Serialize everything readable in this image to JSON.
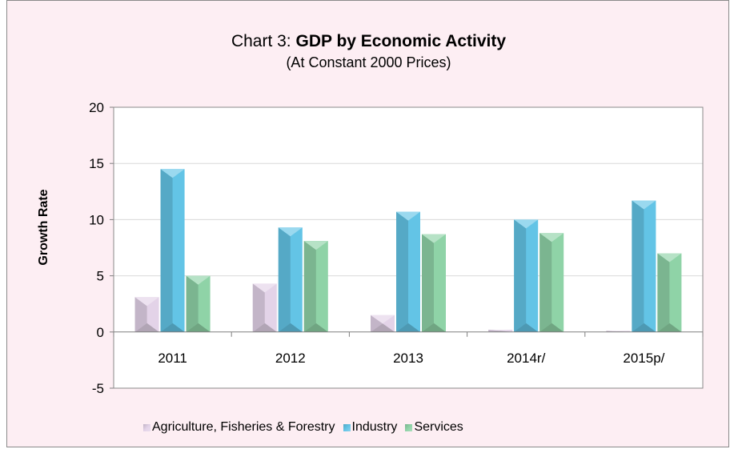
{
  "chart_data": {
    "type": "bar",
    "title_prefix": "Chart 3: ",
    "title_bold": "GDP by Economic Activity",
    "subtitle": "(At Constant 2000 Prices)",
    "xlabel": "",
    "ylabel": "Growth Rate",
    "ylim": [
      -5,
      20
    ],
    "yticks": [
      -5,
      0,
      5,
      10,
      15,
      20
    ],
    "grid": true,
    "legend_position": "bottom",
    "categories": [
      "2011",
      "2012",
      "2013",
      "2014r/",
      "2015p/"
    ],
    "series": [
      {
        "name": "Agriculture, Fisheries & Forestry",
        "color": "#e3d3e8",
        "values": [
          3.1,
          4.3,
          1.5,
          0.2,
          0.1
        ]
      },
      {
        "name": "Industry",
        "color": "#63c4e6",
        "values": [
          14.5,
          9.3,
          10.7,
          10.0,
          11.7
        ]
      },
      {
        "name": "Services",
        "color": "#8fd3a7",
        "values": [
          5.0,
          8.1,
          8.7,
          8.8,
          7.0
        ]
      }
    ]
  }
}
